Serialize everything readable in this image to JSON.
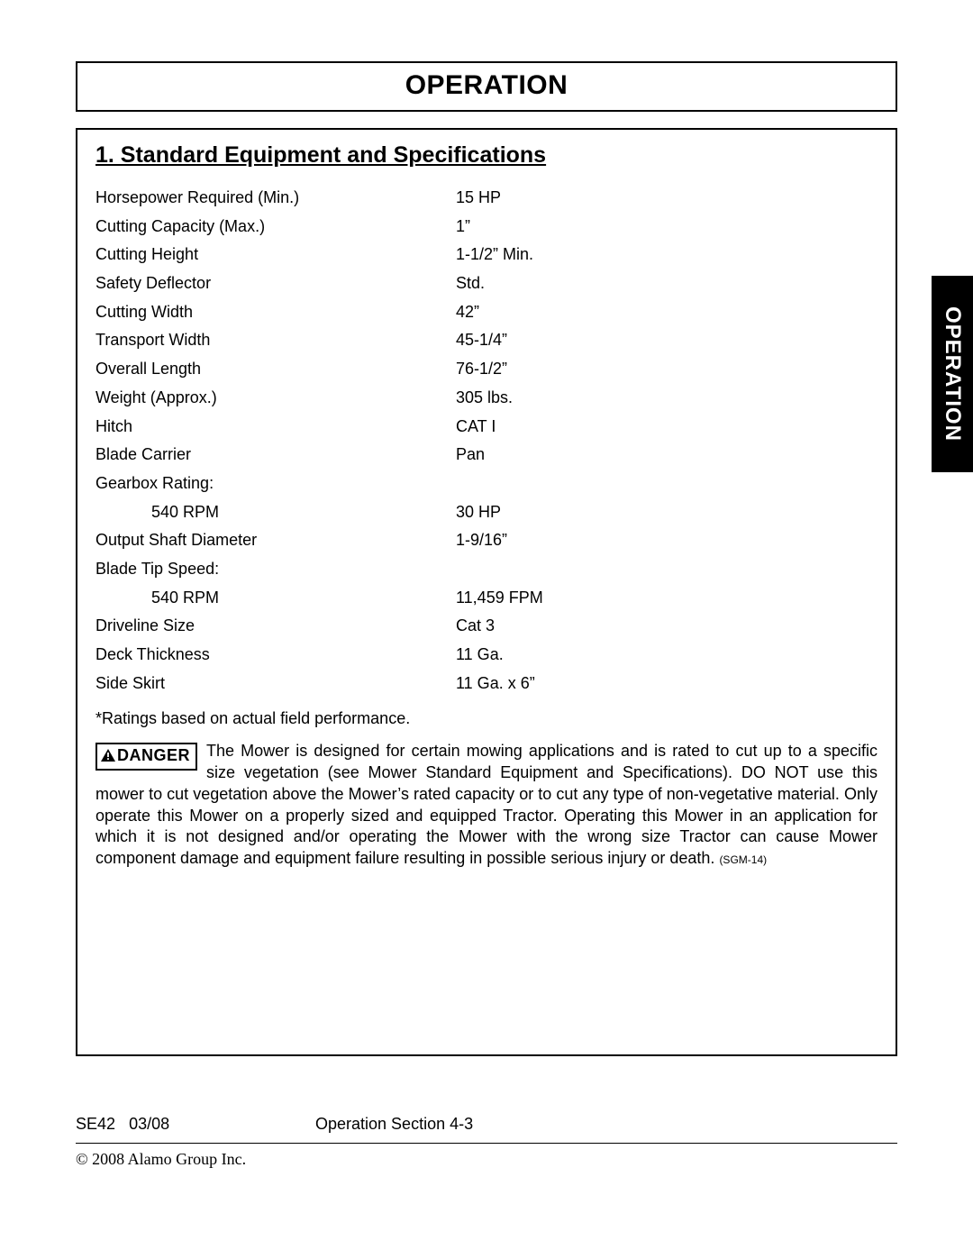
{
  "header": {
    "title": "OPERATION"
  },
  "sideTab": {
    "label": "OPERATION"
  },
  "section": {
    "heading": "1. Standard Equipment and Specifications",
    "specs": [
      {
        "label": "Horsepower Required (Min.)",
        "value": "15 HP",
        "indent": false
      },
      {
        "label": "Cutting Capacity (Max.)",
        "value": "1”",
        "indent": false
      },
      {
        "label": "Cutting Height",
        "value": "1-1/2” Min.",
        "indent": false
      },
      {
        "label": "Safety Deflector",
        "value": "Std.",
        "indent": false
      },
      {
        "label": "Cutting Width",
        "value": "42”",
        "indent": false
      },
      {
        "label": "Transport Width",
        "value": "45-1/4”",
        "indent": false
      },
      {
        "label": "Overall Length",
        "value": "76-1/2”",
        "indent": false
      },
      {
        "label": "Weight (Approx.)",
        "value": "305 lbs.",
        "indent": false
      },
      {
        "label": "Hitch",
        "value": "CAT I",
        "indent": false
      },
      {
        "label": "Blade Carrier",
        "value": "Pan",
        "indent": false
      },
      {
        "label": "Gearbox Rating:",
        "value": "",
        "indent": false
      },
      {
        "label": "540 RPM",
        "value": "30 HP",
        "indent": true
      },
      {
        "label": "Output Shaft Diameter",
        "value": "1-9/16”",
        "indent": false
      },
      {
        "label": "Blade Tip Speed:",
        "value": "",
        "indent": false
      },
      {
        "label": "540 RPM",
        "value": "11,459 FPM",
        "indent": true
      },
      {
        "label": "Driveline Size",
        "value": "Cat 3",
        "indent": false
      },
      {
        "label": "Deck Thickness",
        "value": "11 Ga.",
        "indent": false
      },
      {
        "label": "Side Skirt",
        "value": "11 Ga. x 6”",
        "indent": false
      }
    ],
    "footnote": "*Ratings based on actual field performance."
  },
  "danger": {
    "badge": "DANGER",
    "text": "The Mower is designed for certain mowing applications and is rated to cut up to a specific size vegetation (see Mower Standard Equipment and Specifications).  DO NOT use this mower to cut vegetation above the Mower’s rated capacity or to cut any type of non-vegetative material.  Only operate this Mower on a properly sized and equipped Tractor.  Operating this Mower in an application for which it is not designed and/or operating the Mower with the wrong size Tractor can cause Mower component damage and equipment failure resulting in possible serious injury or death.",
    "refCode": "(SGM-14)"
  },
  "footer": {
    "model": "SE42",
    "date": "03/08",
    "section": "Operation Section 4-3",
    "copyright": "© 2008 Alamo Group Inc."
  }
}
